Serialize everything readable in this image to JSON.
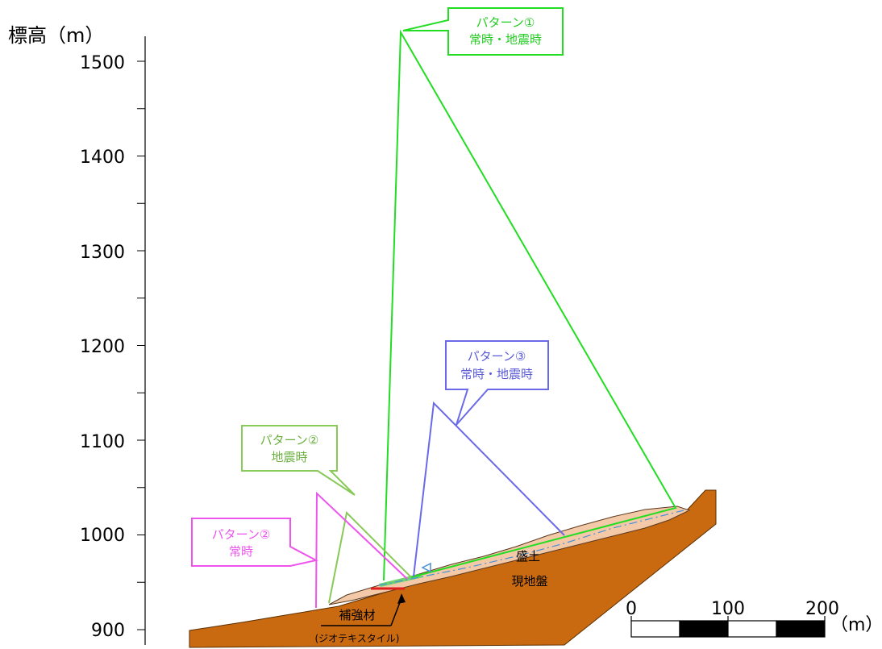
{
  "axis": {
    "title": "標高（m）",
    "ticks": [
      "1500",
      "1400",
      "1300",
      "1200",
      "1100",
      "1000",
      "900"
    ]
  },
  "callouts": {
    "pattern1": {
      "line1": "パターン①",
      "line2": "常時・地震時",
      "color": "#22dd22"
    },
    "pattern2_quake": {
      "line1": "パターン②",
      "line2": "地震時",
      "color": "#88c958"
    },
    "pattern2_normal": {
      "line1": "パターン②",
      "line2": "常時",
      "color": "#ee55ee"
    },
    "pattern3": {
      "line1": "パターン③",
      "line2": "常時・地震時",
      "color": "#6a6ae8"
    }
  },
  "labels": {
    "embankment": "盛土",
    "ground": "現地盤",
    "reinforcement": "補強材",
    "geotextile": "(ジオテキスタイル)"
  },
  "scale_bar": {
    "ticks": [
      "0",
      "100",
      "200"
    ],
    "unit": "（m）"
  },
  "colors": {
    "ground": "#c96a10",
    "embankment": "#f3c9a8"
  }
}
